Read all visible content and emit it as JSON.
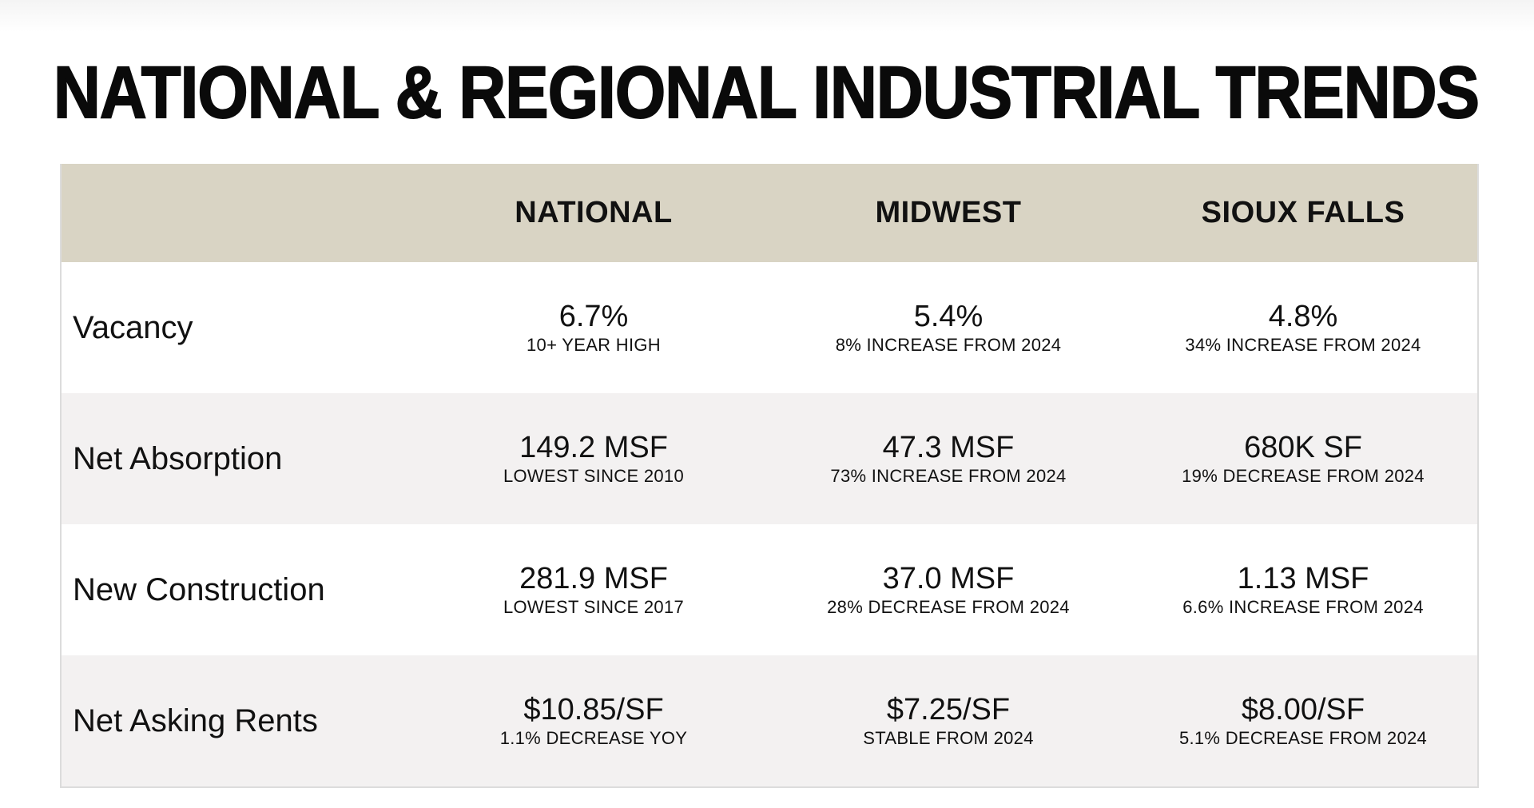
{
  "title": "NATIONAL & REGIONAL INDUSTRIAL TRENDS",
  "columns": [
    "NATIONAL",
    "MIDWEST",
    "SIOUX FALLS"
  ],
  "rows": [
    {
      "label": "Vacancy",
      "cells": [
        {
          "value": "6.7%",
          "note": "10+ YEAR HIGH"
        },
        {
          "value": "5.4%",
          "note": "8% INCREASE FROM 2024"
        },
        {
          "value": "4.8%",
          "note": "34% INCREASE FROM 2024"
        }
      ]
    },
    {
      "label": "Net Absorption",
      "cells": [
        {
          "value": "149.2 MSF",
          "note": "LOWEST SINCE 2010"
        },
        {
          "value": "47.3 MSF",
          "note": "73% INCREASE FROM 2024"
        },
        {
          "value": "680K SF",
          "note": "19% DECREASE FROM 2024"
        }
      ]
    },
    {
      "label": "New Construction",
      "cells": [
        {
          "value": "281.9 MSF",
          "note": "LOWEST SINCE 2017"
        },
        {
          "value": "37.0 MSF",
          "note": "28% DECREASE FROM 2024"
        },
        {
          "value": "1.13 MSF",
          "note": "6.6% INCREASE FROM 2024"
        }
      ]
    },
    {
      "label": "Net Asking Rents",
      "cells": [
        {
          "value": "$10.85/SF",
          "note": "1.1% DECREASE YOY"
        },
        {
          "value": "$7.25/SF",
          "note": "STABLE FROM 2024"
        },
        {
          "value": "$8.00/SF",
          "note": "5.1% DECREASE FROM 2024"
        }
      ]
    }
  ],
  "colors": {
    "header_bg": "#d9d4c4",
    "alt_row_bg": "#f3f1f1"
  }
}
